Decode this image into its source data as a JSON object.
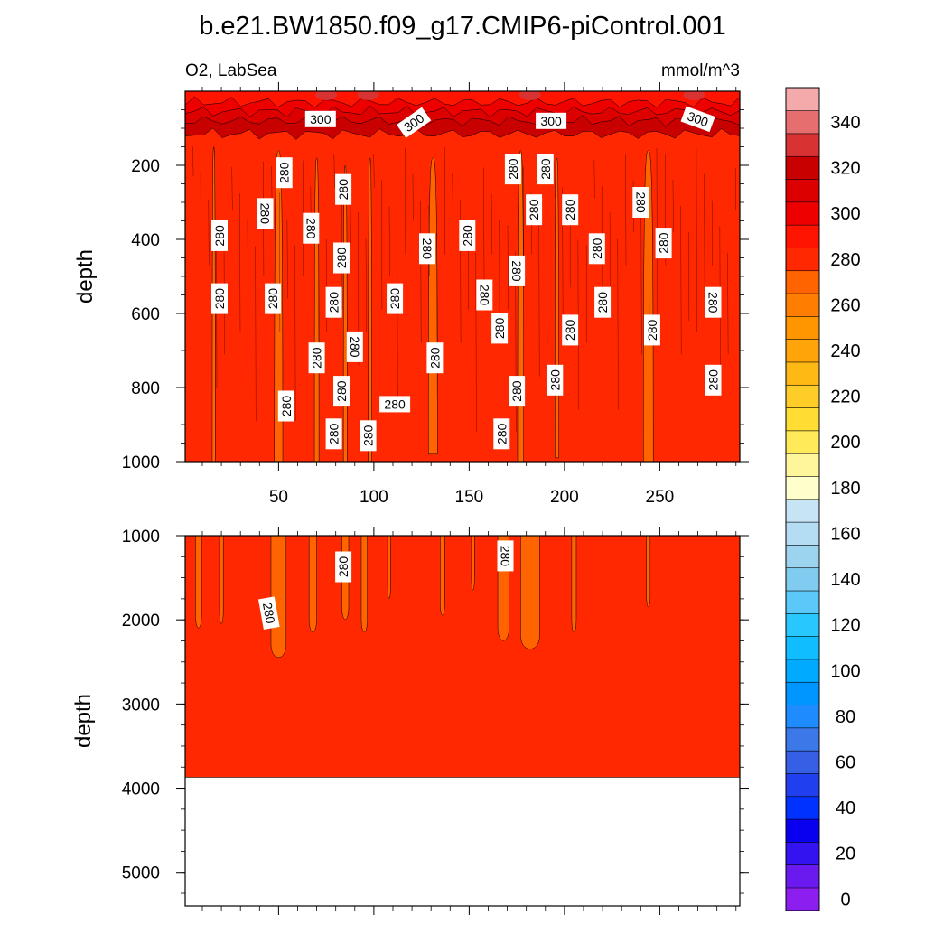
{
  "chart_data": {
    "type": "heatmap",
    "title": "b.e21.BW1850.f09_g17.CMIP6-piControl.001",
    "left_label": "O2, LabSea",
    "right_label": "mmol/m^3",
    "ylabel": "depth",
    "xlim": [
      1,
      292
    ],
    "x_ticks": [
      50,
      100,
      150,
      200,
      250
    ],
    "x_tick_labels": [
      "50",
      "100",
      "150",
      "200",
      "250"
    ],
    "top_panel": {
      "ylim": [
        0,
        1000
      ],
      "y_ticks": [
        200,
        400,
        600,
        800,
        1000
      ],
      "y_tick_labels": [
        "200",
        "400",
        "600",
        "800",
        "1000"
      ]
    },
    "bottom_panel": {
      "ylim": [
        1000,
        5400
      ],
      "y_ticks": [
        1000,
        2000,
        3000,
        4000,
        5000
      ],
      "y_tick_labels": [
        "1000",
        "2000",
        "3000",
        "4000",
        "5000"
      ],
      "no_data_below": 3870
    },
    "dominant_value_range": [
      280,
      290
    ],
    "contour_labels": [
      {
        "text": "300",
        "x": 72,
        "y": 75,
        "panel": "top",
        "angle": 0
      },
      {
        "text": "300",
        "x": 121,
        "y": 85,
        "panel": "top",
        "angle": -35
      },
      {
        "text": "300",
        "x": 193,
        "y": 80,
        "panel": "top",
        "angle": 0
      },
      {
        "text": "300",
        "x": 270,
        "y": 75,
        "panel": "top",
        "angle": 20
      },
      {
        "text": "280",
        "x": 53,
        "y": 220,
        "panel": "top",
        "angle": -90
      },
      {
        "text": "280",
        "x": 84,
        "y": 265,
        "panel": "top",
        "angle": -90
      },
      {
        "text": "280",
        "x": 173,
        "y": 210,
        "panel": "top",
        "angle": -90
      },
      {
        "text": "280",
        "x": 190,
        "y": 210,
        "panel": "top",
        "angle": -90
      },
      {
        "text": "280",
        "x": 43,
        "y": 330,
        "panel": "top",
        "angle": 90
      },
      {
        "text": "280",
        "x": 67,
        "y": 370,
        "panel": "top",
        "angle": 90
      },
      {
        "text": "280",
        "x": 240,
        "y": 300,
        "panel": "top",
        "angle": 90
      },
      {
        "text": "280",
        "x": 184,
        "y": 320,
        "panel": "top",
        "angle": -90
      },
      {
        "text": "280",
        "x": 203,
        "y": 320,
        "panel": "top",
        "angle": -90
      },
      {
        "text": "280",
        "x": 19,
        "y": 390,
        "panel": "top",
        "angle": -90
      },
      {
        "text": "280",
        "x": 149,
        "y": 390,
        "panel": "top",
        "angle": -90
      },
      {
        "text": "280",
        "x": 83,
        "y": 450,
        "panel": "top",
        "angle": -90
      },
      {
        "text": "280",
        "x": 128,
        "y": 425,
        "panel": "top",
        "angle": 90
      },
      {
        "text": "280",
        "x": 217,
        "y": 425,
        "panel": "top",
        "angle": -90
      },
      {
        "text": "280",
        "x": 252,
        "y": 410,
        "panel": "top",
        "angle": -90
      },
      {
        "text": "280",
        "x": 175,
        "y": 485,
        "panel": "top",
        "angle": 90
      },
      {
        "text": "280",
        "x": 19,
        "y": 560,
        "panel": "top",
        "angle": -90
      },
      {
        "text": "280",
        "x": 47,
        "y": 560,
        "panel": "top",
        "angle": -90
      },
      {
        "text": "280",
        "x": 111,
        "y": 560,
        "panel": "top",
        "angle": -90
      },
      {
        "text": "280",
        "x": 158,
        "y": 550,
        "panel": "top",
        "angle": 90
      },
      {
        "text": "280",
        "x": 79,
        "y": 570,
        "panel": "top",
        "angle": -90
      },
      {
        "text": "280",
        "x": 220,
        "y": 570,
        "panel": "top",
        "angle": -90
      },
      {
        "text": "280",
        "x": 278,
        "y": 570,
        "panel": "top",
        "angle": 90
      },
      {
        "text": "280",
        "x": 166,
        "y": 640,
        "panel": "top",
        "angle": -90
      },
      {
        "text": "280",
        "x": 203,
        "y": 645,
        "panel": "top",
        "angle": -90
      },
      {
        "text": "280",
        "x": 246,
        "y": 645,
        "panel": "top",
        "angle": -90
      },
      {
        "text": "280",
        "x": 90,
        "y": 690,
        "panel": "top",
        "angle": 90
      },
      {
        "text": "280",
        "x": 70,
        "y": 720,
        "panel": "top",
        "angle": -90
      },
      {
        "text": "280",
        "x": 132,
        "y": 720,
        "panel": "top",
        "angle": -90
      },
      {
        "text": "280",
        "x": 195,
        "y": 780,
        "panel": "top",
        "angle": -90
      },
      {
        "text": "280",
        "x": 278,
        "y": 780,
        "panel": "top",
        "angle": -90
      },
      {
        "text": "280",
        "x": 83,
        "y": 810,
        "panel": "top",
        "angle": -90
      },
      {
        "text": "280",
        "x": 175,
        "y": 810,
        "panel": "top",
        "angle": -90
      },
      {
        "text": "280",
        "x": 54,
        "y": 850,
        "panel": "top",
        "angle": -90
      },
      {
        "text": "280",
        "x": 111,
        "y": 845,
        "panel": "top",
        "angle": 0
      },
      {
        "text": "280",
        "x": 79,
        "y": 925,
        "panel": "top",
        "angle": -90
      },
      {
        "text": "280",
        "x": 97,
        "y": 930,
        "panel": "top",
        "angle": -90
      },
      {
        "text": "280",
        "x": 167,
        "y": 925,
        "panel": "top",
        "angle": -90
      },
      {
        "text": "280",
        "x": 84,
        "y": 1370,
        "panel": "bottom",
        "angle": -90
      },
      {
        "text": "280",
        "x": 169,
        "y": 1240,
        "panel": "bottom",
        "angle": 90
      },
      {
        "text": "280",
        "x": 45,
        "y": 1920,
        "panel": "bottom",
        "angle": 80
      }
    ],
    "colorbar": {
      "levels": [
        0,
        10,
        20,
        30,
        40,
        50,
        60,
        70,
        80,
        90,
        100,
        110,
        120,
        130,
        140,
        150,
        160,
        170,
        180,
        190,
        200,
        210,
        220,
        230,
        240,
        250,
        260,
        270,
        280,
        290,
        300,
        310,
        320,
        330,
        340,
        350
      ],
      "label_values": [
        "0",
        "20",
        "40",
        "60",
        "80",
        "100",
        "120",
        "140",
        "160",
        "180",
        "200",
        "220",
        "240",
        "260",
        "280",
        "300",
        "320",
        "340"
      ],
      "colors": [
        "#8c1ef0",
        "#6a1aef",
        "#3314f0",
        "#0a00f0",
        "#0032ff",
        "#2040f0",
        "#3560e6",
        "#3c78e8",
        "#1e8cff",
        "#0096ff",
        "#00aaff",
        "#10bdff",
        "#28c8ff",
        "#5ac8f8",
        "#80ccf0",
        "#9cd4f0",
        "#b4dcf2",
        "#c6e4f4",
        "#ffffcc",
        "#fff59a",
        "#ffea5a",
        "#ffdd32",
        "#ffcc28",
        "#ffb914",
        "#ffa50a",
        "#ff9600",
        "#ff7d00",
        "#ff6400",
        "#ff2800",
        "#ff1400",
        "#ee0000",
        "#dd0000",
        "#c80000",
        "#d83232",
        "#e66e6e",
        "#f4aaaa"
      ]
    },
    "field_colors": {
      "bulk": "#ff2800",
      "low_plumes": "#ff6400",
      "surface_bands": [
        "#c80000",
        "#dd0000",
        "#ee0000",
        "#ff1400"
      ],
      "missing": "#ffffff"
    }
  }
}
